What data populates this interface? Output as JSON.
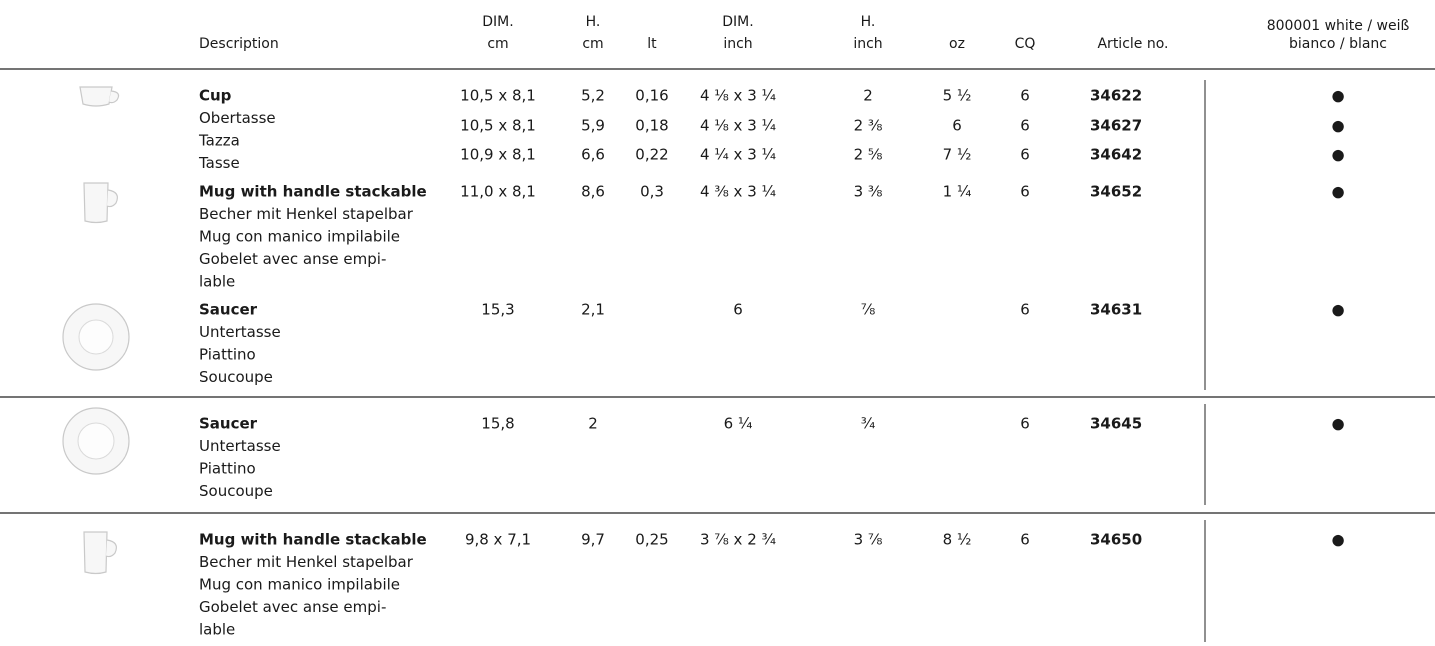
{
  "header": {
    "description": [
      "Description"
    ],
    "dim_cm": [
      "DIM.",
      "cm"
    ],
    "h_cm": [
      "H.",
      "cm"
    ],
    "lt": [
      "lt"
    ],
    "dim_inch": [
      "DIM.",
      "inch"
    ],
    "h_inch": [
      "H.",
      "inch"
    ],
    "oz": [
      "oz"
    ],
    "cq": [
      "CQ"
    ],
    "article": [
      "Article no."
    ],
    "white": [
      "800001 white / weiß",
      "bianco / blanc"
    ]
  },
  "items": [
    {
      "description": [
        "Cup",
        "Obertasse",
        "Tazza",
        "Tasse"
      ],
      "variants": [
        {
          "dim_cm": "10,5 x 8,1",
          "h_cm": "5,2",
          "lt": "0,16",
          "dim_inch": "4 ⅛ x 3 ¼",
          "h_inch": "2",
          "oz": "5 ½",
          "cq": "6",
          "article": "34622",
          "white": "●"
        },
        {
          "dim_cm": "10,5 x 8,1",
          "h_cm": "5,9",
          "lt": "0,18",
          "dim_inch": "4 ⅛ x 3 ¼",
          "h_inch": "2 ⅜",
          "oz": "6",
          "cq": "6",
          "article": "34627",
          "white": "●"
        },
        {
          "dim_cm": "10,9 x 8,1",
          "h_cm": "6,6",
          "lt": "0,22",
          "dim_inch": "4 ¼ x 3 ¼",
          "h_inch": "2 ⅝",
          "oz": "7 ½",
          "cq": "6",
          "article": "34642",
          "white": "●"
        }
      ]
    },
    {
      "description": [
        "Mug with handle stackable",
        "Becher mit Henkel stapelbar",
        "Mug con manico impilabile",
        "Gobelet avec anse empi-",
        "lable"
      ],
      "variants": [
        {
          "dim_cm": "11,0 x 8,1",
          "h_cm": "8,6",
          "lt": "0,3",
          "dim_inch": "4 ⅜ x 3 ¼",
          "h_inch": "3 ⅜",
          "oz": "1 ¼",
          "cq": "6",
          "article": "34652",
          "white": "●"
        }
      ]
    },
    {
      "description": [
        "Saucer",
        "Untertasse",
        "Piattino",
        "Soucoupe"
      ],
      "variants": [
        {
          "dim_cm": "15,3",
          "h_cm": "2,1",
          "dim_inch": "6",
          "h_inch": "⅞",
          "cq": "6",
          "article": "34631",
          "white": "●"
        }
      ]
    },
    {
      "description": [
        "Saucer",
        "Untertasse",
        "Piattino",
        "Soucoupe"
      ],
      "variants": [
        {
          "dim_cm": "15,8",
          "h_cm": "2",
          "dim_inch": "6 ¼",
          "h_inch": "¾",
          "cq": "6",
          "article": "34645",
          "white": "●"
        }
      ]
    },
    {
      "description": [
        "Mug with handle stackable",
        "Becher mit Henkel stapelbar",
        "Mug con manico impilabile",
        "Gobelet avec anse empi-",
        "lable"
      ],
      "variants": [
        {
          "dim_cm": "9,8 x 7,1",
          "h_cm": "9,7",
          "lt": "0,25",
          "dim_inch": "3 ⅞ x 2 ¾",
          "h_inch": "3 ⅞",
          "oz": "8 ½",
          "cq": "6",
          "article": "34650",
          "white": "●"
        }
      ]
    }
  ]
}
